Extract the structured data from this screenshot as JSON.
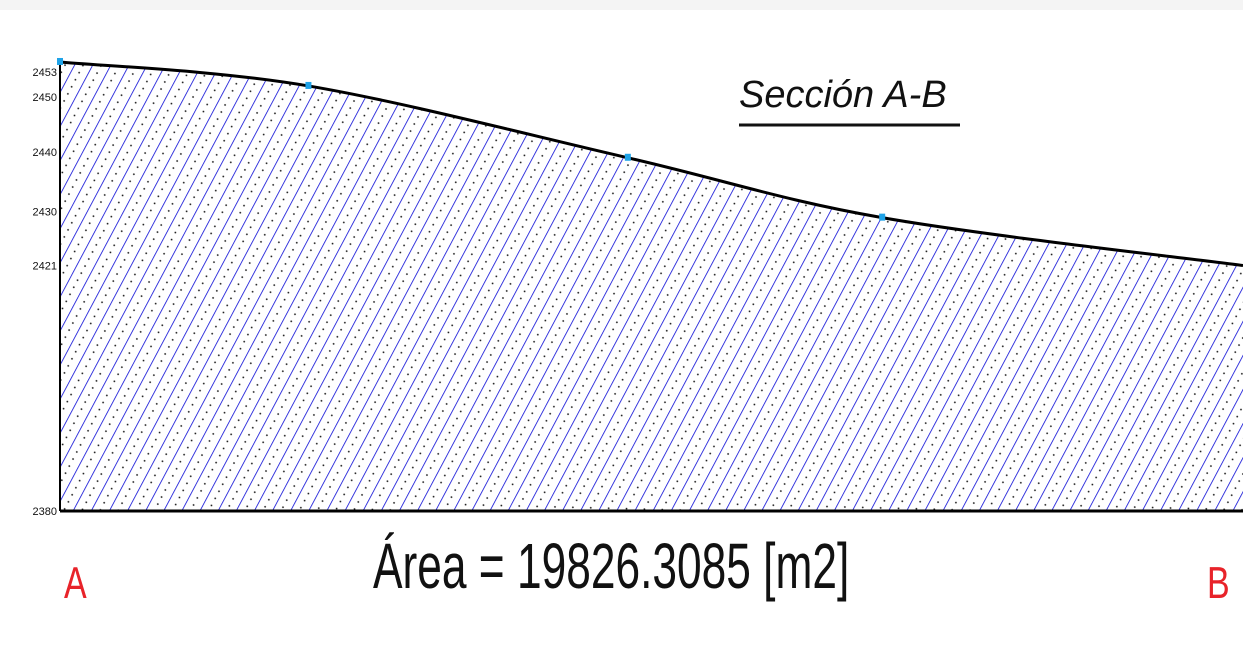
{
  "section": {
    "title": "Sección A-B",
    "area_label": "Área = 19826.3085 [m2]",
    "start_label": "A",
    "end_label": "B"
  },
  "colors": {
    "hatch": "#0a0ad6",
    "dots": "#111111",
    "outline": "#000000",
    "vertex": "#1fa3e8",
    "endpoint_labels": "#e8232a",
    "background": "#ffffff"
  },
  "chart_data": {
    "type": "area",
    "title": "Sección A-B",
    "xlabel": "",
    "ylabel": "",
    "y_ticks": [
      2453,
      2450,
      2440,
      2430,
      2421,
      2380
    ],
    "y_tick_labels": [
      "2453",
      "2450",
      "2440",
      "2430",
      "2421",
      "2380"
    ],
    "ylim": [
      2380,
      2456
    ],
    "x_endpoints": [
      "A",
      "B"
    ],
    "series": [
      {
        "points": [
          {
            "x": 0.0,
            "y": 2455
          },
          {
            "x": 0.21,
            "y": 2451
          },
          {
            "x": 0.48,
            "y": 2439
          },
          {
            "x": 0.695,
            "y": 2429
          },
          {
            "x": 1.0,
            "y": 2421
          }
        ],
        "vertices_marked": [
          0,
          1,
          2,
          3
        ]
      }
    ],
    "fill": "diagonal-hatch",
    "grid": false,
    "legend": "none"
  }
}
